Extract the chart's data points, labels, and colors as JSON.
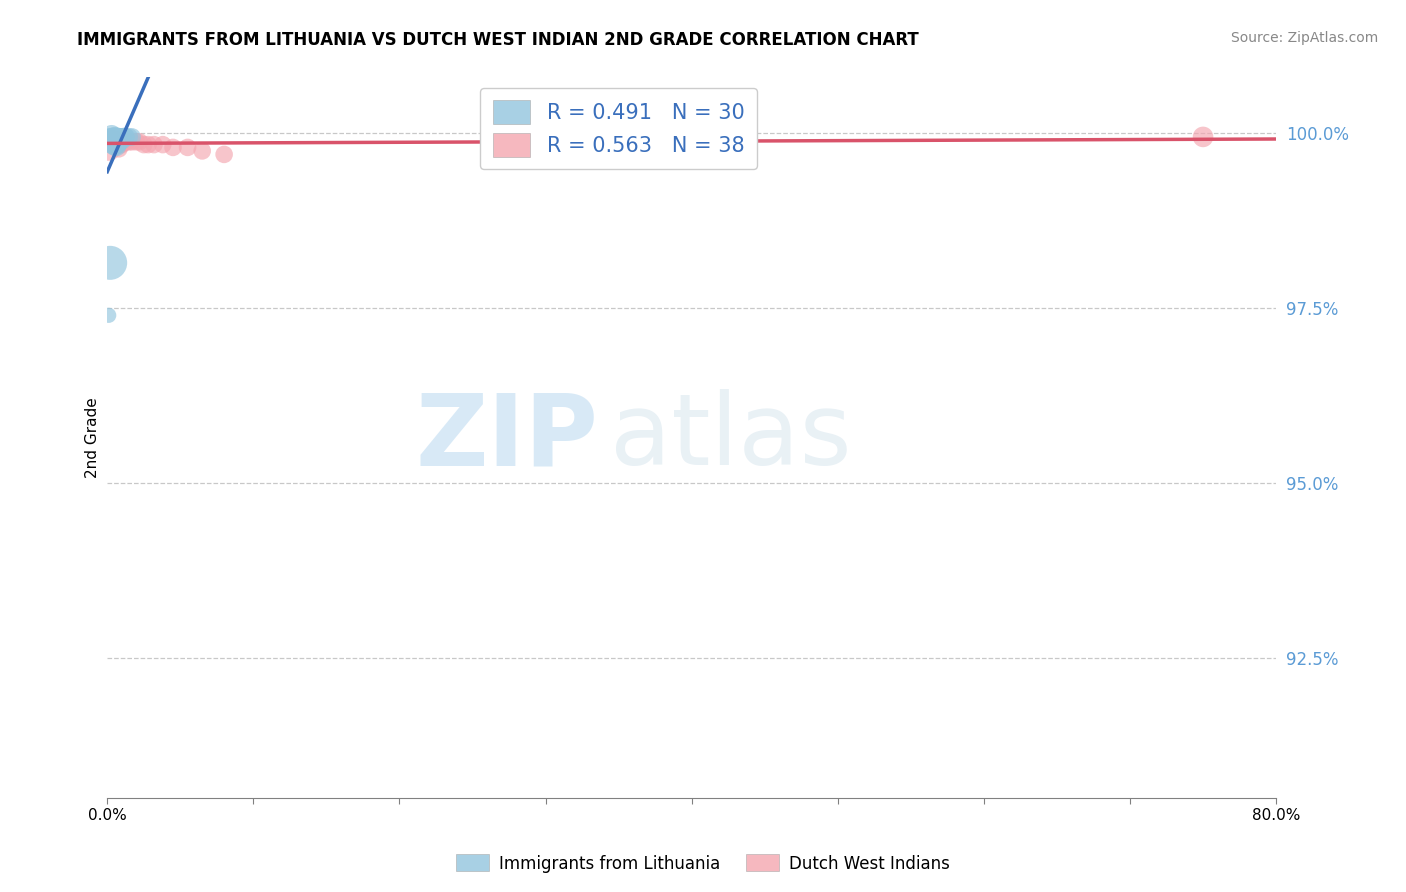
{
  "title": "IMMIGRANTS FROM LITHUANIA VS DUTCH WEST INDIAN 2ND GRADE CORRELATION CHART",
  "source": "Source: ZipAtlas.com",
  "ylabel": "2nd Grade",
  "xlim": [
    0.0,
    0.8
  ],
  "ylim": [
    0.905,
    1.008
  ],
  "yticks": [
    0.925,
    0.95,
    0.975,
    1.0
  ],
  "ytick_labels": [
    "92.5%",
    "95.0%",
    "97.5%",
    "100.0%"
  ],
  "xticks": [
    0.0,
    0.1,
    0.2,
    0.3,
    0.4,
    0.5,
    0.6,
    0.7,
    0.8
  ],
  "xtick_labels": [
    "0.0%",
    "",
    "",
    "",
    "",
    "",
    "",
    "",
    "80.0%"
  ],
  "blue_color": "#92c5de",
  "pink_color": "#f4a6b0",
  "blue_line_color": "#3a6fbc",
  "pink_line_color": "#d9536a",
  "legend_blue_label_r": "R = 0.491",
  "legend_blue_label_n": "N = 30",
  "legend_pink_label_r": "R = 0.563",
  "legend_pink_label_n": "N = 38",
  "legend_bottom_blue": "Immigrants from Lithuania",
  "legend_bottom_pink": "Dutch West Indians",
  "watermark_zip": "ZIP",
  "watermark_atlas": "atlas",
  "blue_points_x": [
    0.001,
    0.002,
    0.002,
    0.003,
    0.003,
    0.003,
    0.004,
    0.004,
    0.005,
    0.005,
    0.005,
    0.006,
    0.006,
    0.006,
    0.007,
    0.007,
    0.007,
    0.008,
    0.008,
    0.009,
    0.009,
    0.01,
    0.01,
    0.011,
    0.012,
    0.013,
    0.015,
    0.017,
    0.002,
    0.001
  ],
  "blue_points_y": [
    0.9995,
    0.9995,
    0.999,
    0.9998,
    0.9992,
    0.9985,
    0.9995,
    0.9988,
    0.9996,
    0.999,
    0.9983,
    0.9995,
    0.9988,
    0.9982,
    0.9995,
    0.999,
    0.9984,
    0.9995,
    0.9988,
    0.9995,
    0.999,
    0.9995,
    0.999,
    0.9995,
    0.9995,
    0.9995,
    0.9995,
    0.9995,
    0.9815,
    0.974
  ],
  "blue_sizes": [
    150,
    160,
    180,
    200,
    180,
    200,
    180,
    200,
    180,
    200,
    220,
    180,
    200,
    220,
    180,
    200,
    180,
    160,
    180,
    160,
    180,
    160,
    180,
    160,
    180,
    160,
    160,
    160,
    600,
    120
  ],
  "pink_points_x": [
    0.001,
    0.002,
    0.002,
    0.003,
    0.003,
    0.004,
    0.004,
    0.005,
    0.005,
    0.005,
    0.006,
    0.006,
    0.007,
    0.007,
    0.008,
    0.008,
    0.008,
    0.009,
    0.009,
    0.01,
    0.01,
    0.011,
    0.012,
    0.013,
    0.015,
    0.017,
    0.02,
    0.022,
    0.025,
    0.028,
    0.032,
    0.038,
    0.045,
    0.055,
    0.065,
    0.08,
    0.001,
    0.75
  ],
  "pink_points_y": [
    0.9992,
    0.9985,
    0.9992,
    0.9988,
    0.9992,
    0.9985,
    0.9992,
    0.9988,
    0.9992,
    0.9985,
    0.999,
    0.9984,
    0.999,
    0.9984,
    0.999,
    0.9984,
    0.9978,
    0.999,
    0.9984,
    0.999,
    0.9984,
    0.9988,
    0.9988,
    0.9988,
    0.9988,
    0.9988,
    0.9988,
    0.9988,
    0.9984,
    0.9984,
    0.9984,
    0.9984,
    0.998,
    0.998,
    0.9975,
    0.997,
    0.9978,
    0.9995
  ],
  "pink_sizes": [
    120,
    150,
    150,
    160,
    160,
    160,
    160,
    160,
    160,
    160,
    160,
    160,
    160,
    160,
    160,
    160,
    160,
    160,
    160,
    160,
    160,
    160,
    160,
    160,
    160,
    160,
    160,
    160,
    160,
    160,
    160,
    160,
    160,
    160,
    160,
    160,
    300,
    220
  ]
}
